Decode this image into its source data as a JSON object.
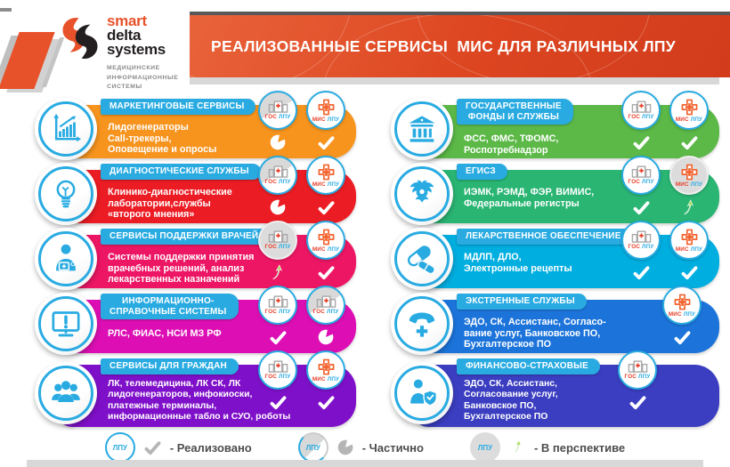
{
  "logo": {
    "brand": [
      "smart",
      "delta",
      "systems"
    ],
    "tagline": "МЕДИЦИНСКИЕ\nИНФОРМАЦИОННЫЕ\nСИСТЕМЫ"
  },
  "header": {
    "title": "РЕАЛИЗОВАННЫЕ СЕРВИСЫ  МИС ДЛЯ РАЗЛИЧНЫХ ЛПУ"
  },
  "badge_labels": {
    "gos": [
      "ГОС",
      "ЛПУ"
    ],
    "mis": [
      "МИС",
      "ЛПУ"
    ]
  },
  "rows_left": [
    {
      "ribbon": "МАРКЕТИНГОВЫЕ СЕРВИСЫ",
      "body": "Лидогенераторы\nCall-трекеры,\nОповещение и опросы",
      "color": "#F7941E",
      "icon": "chart-growth-icon",
      "badges": [
        {
          "kind": "gos",
          "state": "partial",
          "status": "partial"
        },
        {
          "kind": "mis",
          "state": "done",
          "status": "check"
        }
      ]
    },
    {
      "ribbon": "ДИАГНОСТИЧЕСКИЕ СЛУЖБЫ",
      "body": "Клинико-диагностические\nлаборатории,службы\n«второго мнения»",
      "color": "#EC1C24",
      "icon": "lightbulb-icon",
      "badges": [
        {
          "kind": "gos",
          "state": "partial",
          "status": "partial"
        },
        {
          "kind": "mis",
          "state": "done",
          "status": "check"
        }
      ]
    },
    {
      "ribbon": "СЕРВИСЫ ПОДДЕРЖКИ ВРАЧЕЙ",
      "body": "Системы поддержки принятия\nврачебных решений, анализ\nлекарственных назначений",
      "color": "#ED1664",
      "icon": "doctor-icon",
      "badges": [
        {
          "kind": "gos",
          "state": "future",
          "status": "future"
        },
        {
          "kind": "mis",
          "state": "done",
          "status": "check"
        }
      ]
    },
    {
      "ribbon": "ИНФОРМАЦИОННО-\nСПРАВОЧНЫЕ СИСТЕМЫ",
      "body": "РЛС, ФИАС, НСИ МЗ РФ",
      "color": "#DD0FB4",
      "icon": "monitor-alert-icon",
      "badges": [
        {
          "kind": "gos",
          "state": "done",
          "status": "check"
        },
        {
          "kind": "gos",
          "state": "partial",
          "status": "partial"
        }
      ]
    },
    {
      "ribbon": "СЕРВИСЫ ДЛЯ ГРАЖДАН",
      "body": "ЛК, телемедицина, ЛК СК, ЛК\nлидогенераторов, инфокиоски,\nплатежные терминалы,\nинформационные табло и СУО, роботы",
      "color": "#7F10C9",
      "icon": "people-group-icon",
      "badges": [
        {
          "kind": "gos",
          "state": "done",
          "status": "check"
        },
        {
          "kind": "mis",
          "state": "done",
          "status": "check"
        }
      ]
    }
  ],
  "rows_right": [
    {
      "ribbon": "ГОСУДАРСТВЕННЫЕ\nФОНДЫ И СЛУЖБЫ",
      "body": "ФСС, ФМС, ТФОМС,\nРоспотребнадзор",
      "color": "#5CB947",
      "icon": "bank-icon",
      "badges": [
        {
          "kind": "gos",
          "state": "done",
          "status": "check"
        },
        {
          "kind": "mis",
          "state": "done",
          "status": "check"
        }
      ]
    },
    {
      "ribbon": "ЕГИСЗ",
      "body": "ИЭМК, РЭМД, ФЭР, ВИМИС,\nФедеральные регистры",
      "color": "#2AB573",
      "icon": "eagle-icon",
      "badges": [
        {
          "kind": "gos",
          "state": "done",
          "status": "check"
        },
        {
          "kind": "mis",
          "state": "future",
          "status": "future"
        }
      ]
    },
    {
      "ribbon": "ЛЕКАРСТВЕННОЕ ОБЕСПЕЧЕНИЕ",
      "body": "МДЛП, ДЛО,\nЭлектронные рецепты",
      "color": "#00AEE0",
      "icon": "pills-icon",
      "badges": [
        {
          "kind": "gos",
          "state": "done",
          "status": "check"
        },
        {
          "kind": "mis",
          "state": "done",
          "status": "check"
        }
      ]
    },
    {
      "ribbon": "ЭКСТРЕННЫЕ СЛУЖБЫ",
      "body": "ЭДО, СК, Ассистанс, Согласо-\nвание услуг, Банковское ПО,\nБухгалтерское ПО",
      "color": "#1C74DB",
      "icon": "phone-cross-icon",
      "badges": [
        {
          "kind": "mis",
          "state": "done",
          "status": "check"
        }
      ]
    },
    {
      "ribbon": "ФИНАНСОВО-СТРАХОВЫЕ",
      "body": "ЭДО, СК, Ассистанс,\nСогласование услуг,\nБанковское ПО,\nБухгалтерское ПО",
      "color": "#3B3EC0",
      "icon": "shield-person-icon",
      "badges": [
        {
          "kind": "gos",
          "state": "done",
          "status": "check"
        }
      ]
    }
  ],
  "legend": {
    "items": [
      {
        "circle": "done",
        "circle_label": "ЛПУ",
        "status": "check",
        "label": "- Реализовано"
      },
      {
        "circle": "partial",
        "circle_label": "ЛПУ",
        "status": "partial",
        "label": "- Частично"
      },
      {
        "circle": "future",
        "circle_label": "ЛПУ",
        "status": "future",
        "label": "- В перспективе"
      }
    ]
  },
  "colors": {
    "accent_cyan": "#29ABE2",
    "banner_red": "#DC4520",
    "logo_orange": "#E8522A",
    "future_green": "#2FAE4F"
  }
}
